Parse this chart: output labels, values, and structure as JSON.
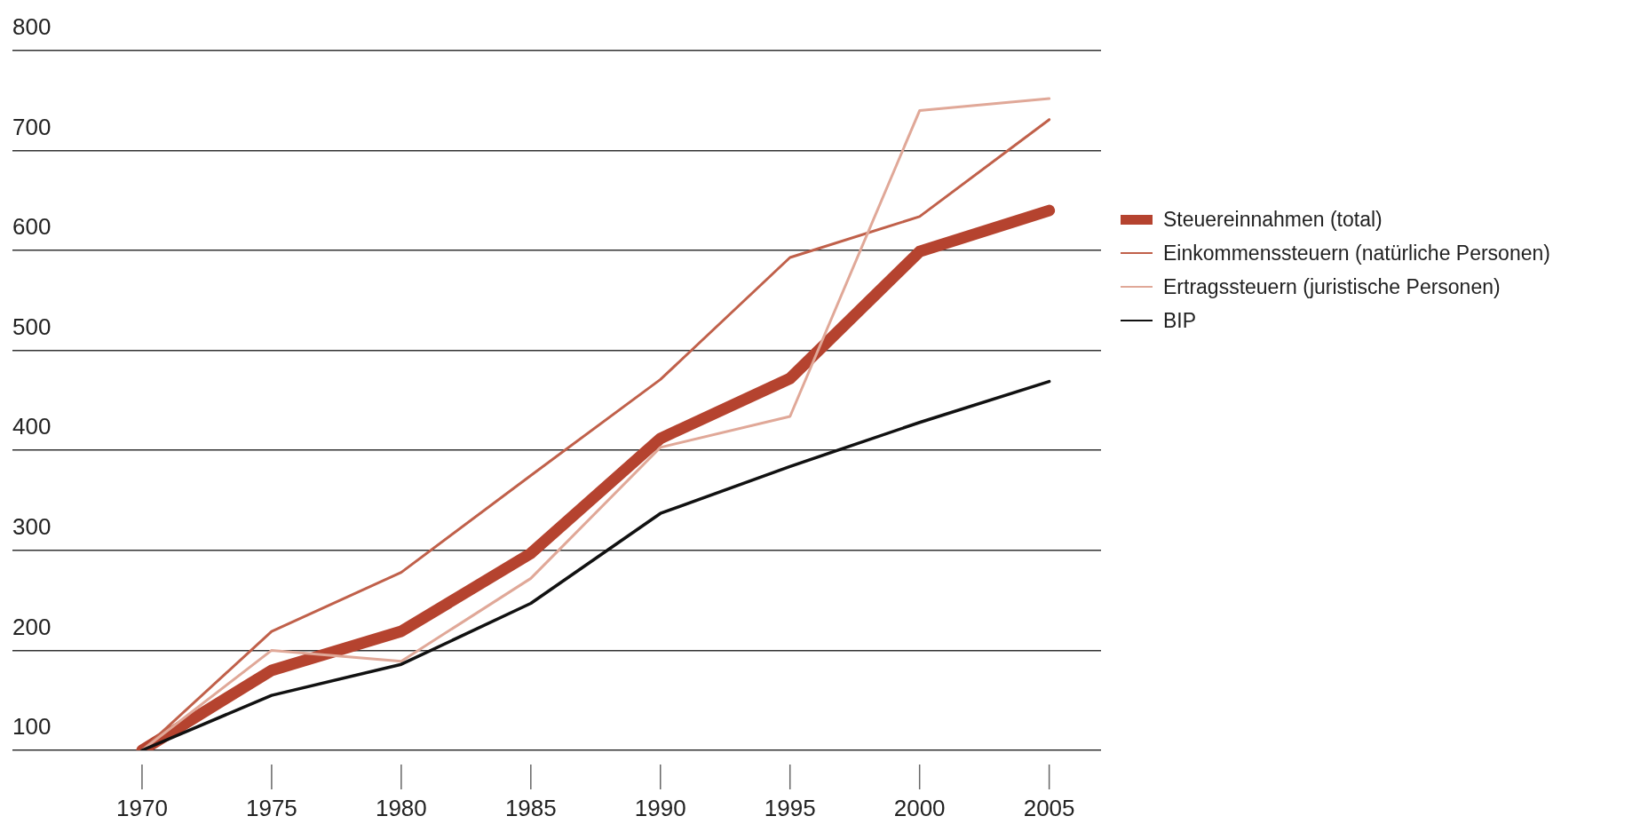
{
  "chart_data": {
    "type": "line",
    "x": [
      1970,
      1975,
      1980,
      1985,
      1990,
      1995,
      2000,
      2005
    ],
    "xlim": [
      1965,
      2007
    ],
    "xticks": [
      1970,
      1975,
      1980,
      1985,
      1990,
      1995,
      2000,
      2005
    ],
    "ylim": [
      100,
      800
    ],
    "yticks": [
      100,
      200,
      300,
      400,
      500,
      600,
      700,
      800
    ],
    "grid": "y",
    "legend": "right",
    "marker": "none",
    "series": [
      {
        "name": "Steuereinnahmen (total)",
        "color": "#b5432f",
        "values": [
          100,
          180,
          219,
          297,
          412,
          472,
          599,
          640
        ]
      },
      {
        "name": "Einkommenssteuern (natürliche Personen)",
        "color": "#c0604a",
        "values": [
          100,
          219,
          278,
          375,
          471,
          593,
          634,
          731
        ]
      },
      {
        "name": "Ertragssteuern (juristische Personen)",
        "color": "#e0a898",
        "values": [
          100,
          200,
          189,
          272,
          403,
          434,
          740,
          752
        ]
      },
      {
        "name": "BIP",
        "color": "#111111",
        "values": [
          100,
          155,
          186,
          247,
          337,
          384,
          428,
          469
        ]
      }
    ]
  }
}
